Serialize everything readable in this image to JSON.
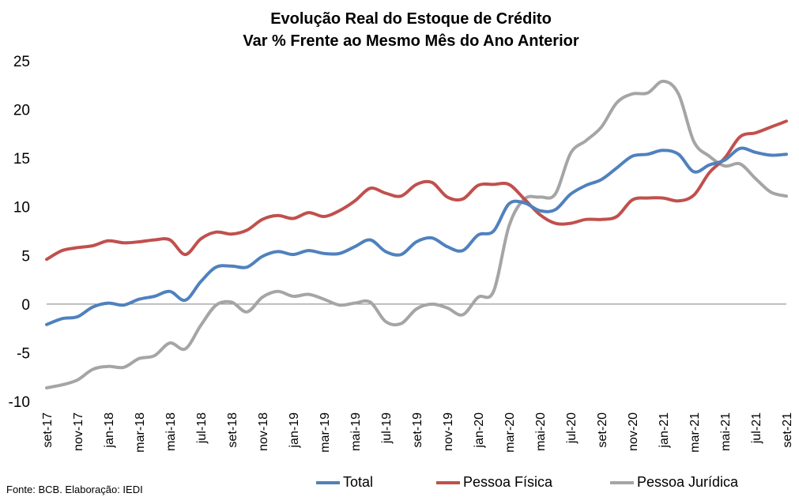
{
  "chart_data": {
    "type": "line",
    "title": "Evolução Real do Estoque de Crédito",
    "subtitle": "Var % Frente ao Mesmo Mês do Ano Anterior",
    "ylim": [
      -10,
      25
    ],
    "yticks": [
      "25",
      "20",
      "15",
      "10",
      "5",
      "0",
      "-5",
      "-10"
    ],
    "ytick_values": [
      25,
      20,
      15,
      10,
      5,
      0,
      -5,
      -10
    ],
    "x_tick_labels": [
      "set-17",
      "nov-17",
      "jan-18",
      "mar-18",
      "mai-18",
      "jul-18",
      "set-18",
      "nov-18",
      "jan-19",
      "mar-19",
      "mai-19",
      "jul-19",
      "set-19",
      "nov-19",
      "jan-20",
      "mar-20",
      "mai-20",
      "jul-20",
      "set-20",
      "nov-20",
      "jan-21",
      "mar-21",
      "mai-21",
      "jul-21",
      "set-21"
    ],
    "x": [
      "set-17",
      "out-17",
      "nov-17",
      "dez-17",
      "jan-18",
      "fev-18",
      "mar-18",
      "abr-18",
      "mai-18",
      "jun-18",
      "jul-18",
      "ago-18",
      "set-18",
      "out-18",
      "nov-18",
      "dez-18",
      "jan-19",
      "fev-19",
      "mar-19",
      "abr-19",
      "mai-19",
      "jun-19",
      "jul-19",
      "ago-19",
      "set-19",
      "out-19",
      "nov-19",
      "dez-19",
      "jan-20",
      "fev-20",
      "mar-20",
      "abr-20",
      "mai-20",
      "jun-20",
      "jul-20",
      "ago-20",
      "set-20",
      "out-20",
      "nov-20",
      "dez-20",
      "jan-21",
      "fev-21",
      "mar-21",
      "abr-21",
      "mai-21",
      "jun-21",
      "jul-21",
      "ago-21",
      "set-21"
    ],
    "series": [
      {
        "name": "Total",
        "color": "#4f81bd",
        "values": [
          -2.1,
          -1.5,
          -1.3,
          -0.3,
          0.1,
          -0.1,
          0.5,
          0.8,
          1.3,
          0.4,
          2.3,
          3.8,
          3.9,
          3.8,
          4.9,
          5.4,
          5.1,
          5.5,
          5.2,
          5.2,
          5.9,
          6.6,
          5.4,
          5.1,
          6.4,
          6.8,
          5.9,
          5.5,
          7.1,
          7.5,
          10.3,
          10.4,
          9.6,
          9.7,
          11.3,
          12.2,
          12.8,
          14.0,
          15.2,
          15.4,
          15.8,
          15.4,
          13.6,
          14.3,
          14.8,
          16.0,
          15.6,
          15.3,
          15.4
        ]
      },
      {
        "name": "Pessoa Física",
        "color": "#c0504d",
        "values": [
          4.6,
          5.5,
          5.8,
          6.0,
          6.5,
          6.3,
          6.4,
          6.6,
          6.6,
          5.1,
          6.7,
          7.4,
          7.2,
          7.6,
          8.7,
          9.1,
          8.8,
          9.4,
          9.0,
          9.6,
          10.6,
          11.9,
          11.4,
          11.1,
          12.3,
          12.5,
          11.0,
          10.8,
          12.2,
          12.3,
          12.3,
          10.8,
          9.2,
          8.3,
          8.3,
          8.7,
          8.7,
          9.0,
          10.7,
          10.9,
          10.9,
          10.6,
          11.2,
          13.5,
          15.0,
          17.2,
          17.6,
          18.2,
          18.8
        ]
      },
      {
        "name": "Pessoa Jurídica",
        "color": "#a5a5a5",
        "values": [
          -8.6,
          -8.3,
          -7.8,
          -6.7,
          -6.4,
          -6.5,
          -5.6,
          -5.3,
          -4.0,
          -4.6,
          -2.2,
          -0.1,
          0.2,
          -0.8,
          0.7,
          1.3,
          0.8,
          1.0,
          0.5,
          -0.1,
          0.1,
          0.2,
          -1.8,
          -2.0,
          -0.5,
          0.0,
          -0.4,
          -1.1,
          0.7,
          1.3,
          8.0,
          10.8,
          11.0,
          11.3,
          15.5,
          16.8,
          18.2,
          20.7,
          21.6,
          21.7,
          22.9,
          21.6,
          16.7,
          15.2,
          14.2,
          14.4,
          12.9,
          11.5,
          11.1
        ]
      }
    ],
    "zero_line": true,
    "grid": false,
    "legend_position": "bottom"
  },
  "source_note": "Fonte: BCB. Elaboração: IEDI"
}
